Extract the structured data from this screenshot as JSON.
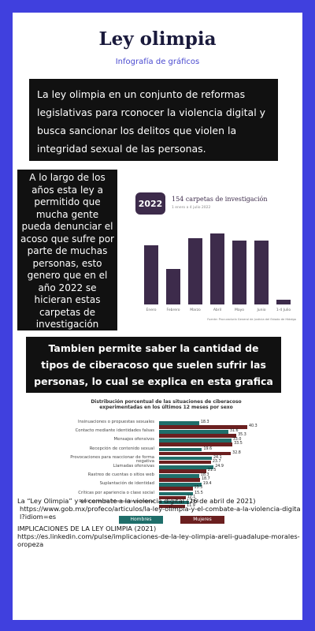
{
  "header": {
    "title": "Ley olimpia",
    "subtitle": "Infografía de gráficos"
  },
  "intro": "La ley olimpia en un conjunto de reformas legislativas para rconocer la violencia digital y busca sancionar los delitos que violen la integridad sexual de las personas.",
  "side_text": "A lo largo de los años esta ley a permitido que mucha gente pueda denunciar el acoso que sufre por parte de muchas personas, esto genero que en el año 2022 se hicieran estas carpetas de investigación",
  "middle_text": "Tambien permite saber la cantidad de tipos de ciberacoso que suelen sufrir las personas, lo cual se explica en esta grafica",
  "chart_data": [
    {
      "type": "bar",
      "badge": "2022",
      "title": "154 carpetas de investigación",
      "subtitle": "1 enero a 4 julio 2022",
      "categories": [
        "Enero",
        "Febrero",
        "Marzo",
        "Abril",
        "Mayo",
        "Junio",
        "1-4 Julio"
      ],
      "values": [
        25,
        15,
        28,
        30,
        27,
        27,
        2
      ],
      "color": "#3d2b4b",
      "source": "Fuente: Procuraduría General de Justicia del Estado de Hidalgo"
    },
    {
      "type": "hbar",
      "title": "Distribución porcentual de las situaciones de ciberacoso experimentadas en los últimos 12 meses por sexo",
      "categories": [
        "Insinuaciones o propuestas sexuales",
        "Contacto mediante identidades falsas",
        "Mensajes ofensivos",
        "Recepción de contenido sexual",
        "Provocaciones para reaccionar de forma negativa",
        "Llamadas ofensivas",
        "Rastreo de cuentas o sitios web",
        "Suplantación de identidad",
        "Críticas por apariencia o clase social",
        "Publicación de información personal"
      ],
      "series": [
        {
          "name": "Hombres",
          "color": "#1f6e6a",
          "values": [
            18.3,
            31.6,
            33.0,
            19.6,
            24.1,
            24.9,
            18.3,
            19.4,
            15.5,
            13.6
          ],
          "value_labels": [
            "18.3",
            "31.6",
            "33.0",
            "19.6",
            "24.1",
            "24.9",
            "18.3",
            "19.4",
            "15.5",
            "13.6"
          ]
        },
        {
          "name": "Mujeres",
          "color": "#6b1f1f",
          "values": [
            40.3,
            35.3,
            33.5,
            32.8,
            23.7,
            21.5,
            18.7,
            15.3,
            12.1,
            11.9
          ],
          "value_labels": [
            "40.3",
            "35.3",
            "33.5",
            "32.8",
            "23.7",
            "21.5",
            "18.7",
            "15.3",
            "12.1",
            "11.9"
          ]
        }
      ]
    }
  ],
  "references": [
    {
      "title": "La “Ley Olimpia” y el combate a la violencia digital (26 de abril de 2021)",
      "url": "https://www.gob.mx/profeco/articulos/la-ley-olimpia-y-el-combate-a-la-violencia-digital?idiom=es"
    },
    {
      "title": "IMPLICACIONES DE LA LEY OLIMPIA (2021)",
      "url": "https://es.linkedin.com/pulse/implicaciones-de-la-ley-olimpia-areli-guadalupe-morales-oropeza"
    }
  ]
}
